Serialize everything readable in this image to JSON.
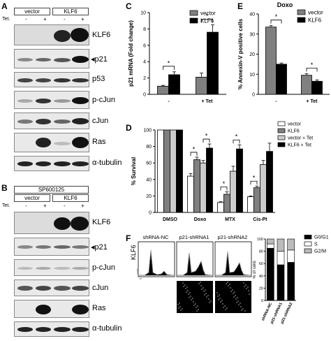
{
  "panel_labels": [
    "A",
    "B",
    "C",
    "D",
    "E",
    "F"
  ],
  "blot_A": {
    "groups": [
      "vector",
      "KLF6"
    ],
    "tet_label": "Tet.",
    "lanes": [
      "-",
      "+",
      "-",
      "+"
    ],
    "rows": [
      "KLF6",
      "p21",
      "p53",
      "p-cJun",
      "cJun",
      "Ras",
      "α-tubulin"
    ],
    "arrow_row": "p21"
  },
  "blot_B": {
    "inhibitor": "SP600125",
    "groups": [
      "vector",
      "KLF6"
    ],
    "tet_label": "Tet.",
    "lanes": [
      "-",
      "+",
      "-",
      "+"
    ],
    "rows": [
      "KLF6",
      "p21",
      "p-cJun",
      "cJun",
      "Ras",
      "α-tubulin"
    ],
    "arrow_row": "p21"
  },
  "chart_data": [
    {
      "panel": "C",
      "type": "bar",
      "ylabel": "p21 mRNA (Fold change)",
      "categories": [
        "-",
        "+ Tet"
      ],
      "ylim": [
        0,
        10
      ],
      "yticks": [
        0,
        2,
        4,
        6,
        8,
        10
      ],
      "legend": "top-left",
      "series": [
        {
          "name": "vector",
          "color": "#808080",
          "values": [
            1.0,
            2.1
          ],
          "errors": [
            0.1,
            0.5
          ]
        },
        {
          "name": "KLF6",
          "color": "#000000",
          "values": [
            2.4,
            7.6
          ],
          "errors": [
            0.35,
            0.9
          ]
        }
      ],
      "significance": [
        {
          "category": 0,
          "label": "*"
        },
        {
          "category": 1,
          "label": "*"
        }
      ]
    },
    {
      "panel": "E",
      "type": "bar",
      "title": "Doxo",
      "ylabel": "% Annexin-V positive cells",
      "categories": [
        "-",
        "+ Tet"
      ],
      "ylim": [
        0,
        40
      ],
      "yticks": [
        0,
        10,
        20,
        30,
        40
      ],
      "legend": "top-right",
      "series": [
        {
          "name": "vector",
          "color": "#808080",
          "values": [
            33.5,
            9.5
          ],
          "errors": [
            0.7,
            0.8
          ]
        },
        {
          "name": "KLF6",
          "color": "#000000",
          "values": [
            15,
            6.5
          ],
          "errors": [
            0.6,
            0.7
          ]
        }
      ],
      "significance": [
        {
          "category": 0,
          "label": "*"
        },
        {
          "category": 1,
          "label": "*"
        }
      ]
    },
    {
      "panel": "D",
      "type": "bar",
      "ylabel": "% Survival",
      "categories": [
        "DMSO",
        "Doxo",
        "MTX",
        "Cis-Pt"
      ],
      "ylim": [
        0,
        100
      ],
      "yticks": [
        0,
        20,
        40,
        60,
        80,
        100
      ],
      "legend": "right",
      "series": [
        {
          "name": "vector",
          "color": "#ffffff",
          "values": [
            100,
            44,
            12,
            19
          ],
          "errors": [
            0,
            3,
            1,
            1
          ]
        },
        {
          "name": "KLF6",
          "color": "#808080",
          "values": [
            100,
            64,
            22,
            30
          ],
          "errors": [
            0,
            3,
            3,
            2
          ]
        },
        {
          "name": "vector + Tet",
          "color": "#cccccc",
          "values": [
            100,
            60,
            50,
            58
          ],
          "errors": [
            0,
            3,
            6,
            5
          ]
        },
        {
          "name": "KLF6 + Tet",
          "color": "#000000",
          "values": [
            100,
            78,
            77,
            74
          ],
          "errors": [
            0,
            5,
            5,
            10
          ]
        }
      ],
      "significance": [
        {
          "category": 1,
          "label": "*"
        },
        {
          "category": 1,
          "label": "*"
        },
        {
          "category": 2,
          "label": "*"
        },
        {
          "category": 2,
          "label": "*"
        },
        {
          "category": 3,
          "label": "*"
        }
      ]
    },
    {
      "panel": "F",
      "type": "bar",
      "stacked": true,
      "ylabel": "% of cells",
      "categories": [
        "shRNA-NC",
        "p21-shRNA1",
        "p21-shRNA2"
      ],
      "ylim": [
        0,
        100
      ],
      "yticks": [
        0,
        20,
        40,
        60,
        80,
        100
      ],
      "legend": "top-right",
      "series": [
        {
          "name": "G0/G1",
          "color": "#000000",
          "values": [
            85,
            58,
            62
          ]
        },
        {
          "name": "S",
          "color": "#ffffff",
          "values": [
            7,
            22,
            20
          ]
        },
        {
          "name": "G2/M",
          "color": "#bbbbbb",
          "values": [
            8,
            20,
            18
          ]
        }
      ]
    }
  ],
  "flow_F": {
    "row_label": "KLF6",
    "panels": [
      "shRNA-NC",
      "p21-shRNA1",
      "p21-shRNA2"
    ],
    "axis_y": "Count",
    "axis_x": "PI"
  }
}
